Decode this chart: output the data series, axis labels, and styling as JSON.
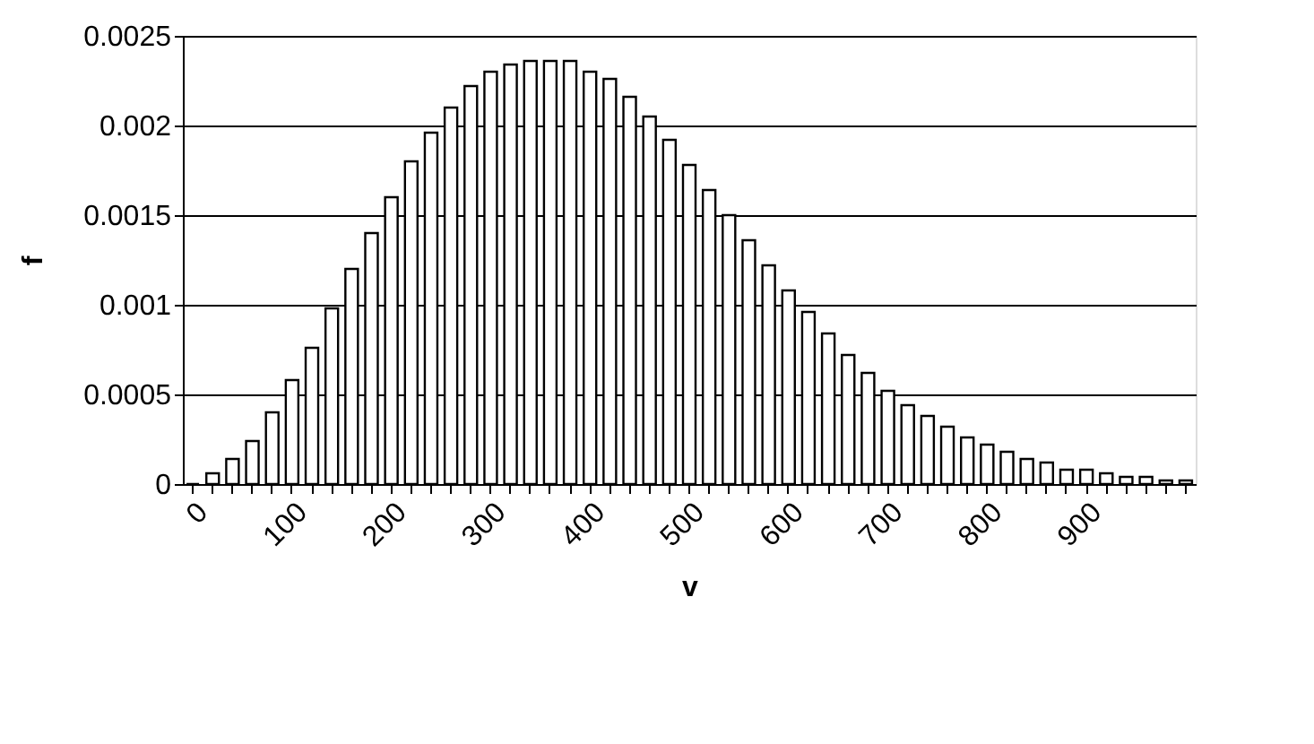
{
  "chart_data": {
    "type": "bar",
    "xlabel": "v",
    "ylabel": "f",
    "categories": [
      "0",
      null,
      null,
      null,
      null,
      "100",
      null,
      null,
      null,
      null,
      "200",
      null,
      null,
      null,
      null,
      "300",
      null,
      null,
      null,
      null,
      "400",
      null,
      null,
      null,
      null,
      "500",
      null,
      null,
      null,
      null,
      "600",
      null,
      null,
      null,
      null,
      "700",
      null,
      null,
      null,
      null,
      "800",
      null,
      null,
      null,
      null,
      "900",
      null,
      null,
      null,
      null,
      null
    ],
    "series": [
      {
        "color": "#ffffff",
        "values": [
          0,
          6e-05,
          0.00014,
          0.00024,
          0.0004,
          0.00058,
          0.00076,
          0.00098,
          0.0012,
          0.0014,
          0.0016,
          0.0018,
          0.00196,
          0.0021,
          0.00222,
          0.0023,
          0.00234,
          0.00236,
          0.00236,
          0.00236,
          0.0023,
          0.00226,
          0.00216,
          0.00205,
          0.00192,
          0.00178,
          0.00164,
          0.0015,
          0.00136,
          0.00122,
          0.00108,
          0.00096,
          0.00084,
          0.00072,
          0.00062,
          0.00052,
          0.00044,
          0.00038,
          0.00032,
          0.00026,
          0.00022,
          0.00018,
          0.00014,
          0.00012,
          8e-05,
          8e-05,
          6e-05,
          4e-05,
          4e-05,
          2e-05,
          2e-05
        ]
      }
    ],
    "ylim": [
      0,
      0.0025
    ],
    "yticks": [
      0,
      0.0005,
      0.001,
      0.0015,
      0.002,
      0.0025
    ],
    "grid": "y"
  }
}
